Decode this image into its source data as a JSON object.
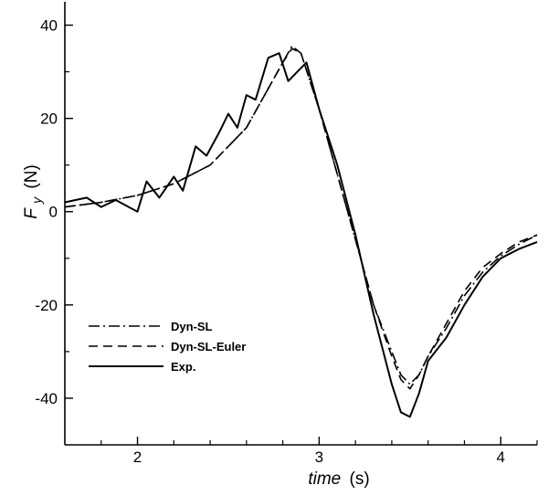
{
  "chart_data": {
    "type": "line",
    "xlabel_main": "time",
    "xlabel_unit": "(s)",
    "ylabel_main": "F",
    "ylabel_sub": "y",
    "ylabel_unit": "(N)",
    "xlim": [
      1.6,
      4.2
    ],
    "ylim": [
      -50,
      45
    ],
    "xticks": [
      2,
      3,
      4
    ],
    "xticks_minor": [
      1.8,
      2.2,
      2.4,
      2.6,
      2.8,
      3.2,
      3.4,
      3.6,
      3.8,
      4.2
    ],
    "yticks": [
      -40,
      -20,
      0,
      20,
      40
    ],
    "yticks_minor": [
      -30,
      -10,
      10,
      30
    ],
    "legend_position": "lower-left",
    "series": [
      {
        "name": "Dyn-SL",
        "style": "dashdot",
        "color": "#000000",
        "x": [
          1.6,
          1.8,
          2.0,
          2.2,
          2.4,
          2.6,
          2.7,
          2.8,
          2.85,
          2.9,
          3.0,
          3.1,
          3.2,
          3.3,
          3.4,
          3.45,
          3.5,
          3.55,
          3.6,
          3.7,
          3.8,
          3.9,
          4.0,
          4.1,
          4.2
        ],
        "y": [
          1,
          2,
          3.5,
          6,
          10,
          18,
          25,
          32,
          35.5,
          34,
          22,
          8,
          -6,
          -20,
          -30,
          -35,
          -37,
          -35,
          -31,
          -25,
          -18,
          -13,
          -9.5,
          -7,
          -5
        ]
      },
      {
        "name": "Dyn-SL-Euler",
        "style": "dashed",
        "color": "#000000",
        "x": [
          1.6,
          1.8,
          2.0,
          2.2,
          2.4,
          2.6,
          2.7,
          2.8,
          2.85,
          2.9,
          3.0,
          3.1,
          3.2,
          3.3,
          3.4,
          3.45,
          3.5,
          3.55,
          3.6,
          3.7,
          3.8,
          3.9,
          4.0,
          4.1,
          4.2
        ],
        "y": [
          1,
          2,
          3.5,
          6,
          10,
          18,
          25,
          32,
          35,
          34,
          22,
          8,
          -6,
          -20,
          -31,
          -36,
          -38,
          -35,
          -31,
          -24,
          -17,
          -12,
          -9,
          -6.5,
          -5
        ]
      },
      {
        "name": "Exp.",
        "style": "solid",
        "color": "#000000",
        "x": [
          1.6,
          1.72,
          1.8,
          1.88,
          2.0,
          2.05,
          2.12,
          2.2,
          2.25,
          2.32,
          2.38,
          2.45,
          2.5,
          2.55,
          2.6,
          2.65,
          2.72,
          2.78,
          2.83,
          2.88,
          2.93,
          3.0,
          3.1,
          3.2,
          3.3,
          3.4,
          3.45,
          3.5,
          3.55,
          3.6,
          3.7,
          3.8,
          3.9,
          4.0,
          4.1,
          4.2
        ],
        "y": [
          2,
          3,
          1,
          2.5,
          0,
          6.5,
          3,
          7.5,
          4.5,
          14,
          12,
          17,
          21,
          18,
          25,
          24,
          33,
          34,
          28,
          30,
          32,
          22,
          10,
          -5,
          -22,
          -37,
          -43,
          -44,
          -39,
          -32,
          -27,
          -20,
          -14,
          -10,
          -8,
          -6.5
        ]
      }
    ]
  }
}
